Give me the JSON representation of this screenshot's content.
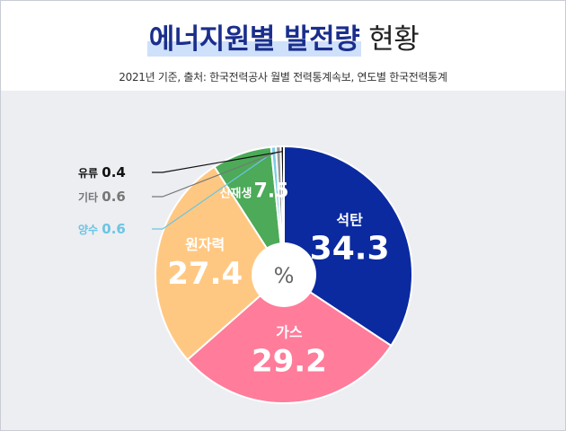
{
  "header": {
    "title_main": "에너지원별 발전량",
    "title_suffix": "현황",
    "subtitle": "2021년 기준, 출처: 한국전력공사 월별 전력통계속보, 연도별 한국전력통계"
  },
  "chart_data": {
    "type": "pie",
    "style": "donut",
    "center_label": "%",
    "slices": [
      {
        "name": "석탄",
        "value": 34.3,
        "color": "#0b2aa0"
      },
      {
        "name": "가스",
        "value": 29.2,
        "color": "#ff7c9a"
      },
      {
        "name": "원자력",
        "value": 27.4,
        "color": "#ffc882"
      },
      {
        "name": "신재생",
        "value": 7.5,
        "color": "#4caa58"
      },
      {
        "name": "양수",
        "value": 0.6,
        "color": "#7ccde6"
      },
      {
        "name": "기타",
        "value": 0.6,
        "color": "#9a9a9a"
      },
      {
        "name": "유류",
        "value": 0.4,
        "color": "#111111"
      }
    ],
    "callouts": {
      "유류": {
        "label": "유류",
        "value": "0.4",
        "label_color": "#111111",
        "value_color": "#111111"
      },
      "기타": {
        "label": "기타",
        "value": "0.6",
        "label_color": "#777777",
        "value_color": "#777777"
      },
      "양수": {
        "label": "양수",
        "value": "0.6",
        "label_color": "#6cc4e2",
        "value_color": "#6cc4e2"
      }
    }
  }
}
